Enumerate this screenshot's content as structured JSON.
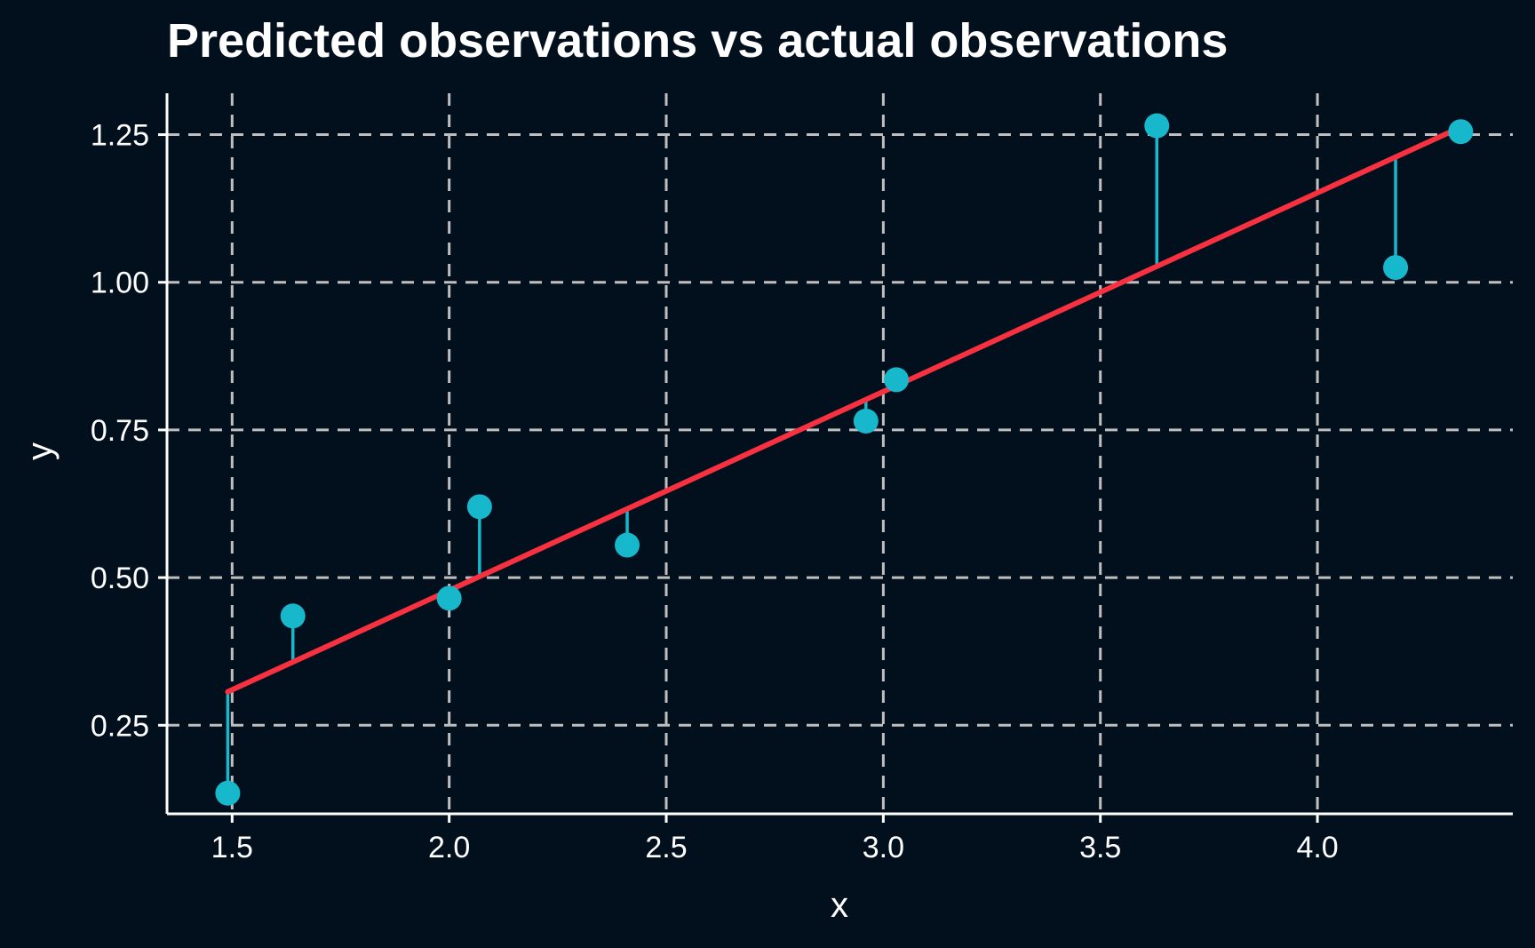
{
  "chart_data": {
    "type": "scatter",
    "title": "Predicted observations vs actual observations",
    "xlabel": "x",
    "ylabel": "y",
    "xlim": [
      1.35,
      4.45
    ],
    "ylim": [
      0.1,
      1.32
    ],
    "x_ticks": [
      1.5,
      2.0,
      2.5,
      3.0,
      3.5,
      4.0
    ],
    "x_tick_labels": [
      "1.5",
      "2.0",
      "2.5",
      "3.0",
      "3.5",
      "4.0"
    ],
    "y_ticks": [
      0.25,
      0.5,
      0.75,
      1.0,
      1.25
    ],
    "y_tick_labels": [
      "0.25",
      "0.50",
      "0.75",
      "1.00",
      "1.25"
    ],
    "grid": true,
    "series": [
      {
        "points": [
          {
            "x": 1.49,
            "y": 0.135
          },
          {
            "x": 1.64,
            "y": 0.435
          },
          {
            "x": 2.0,
            "y": 0.465
          },
          {
            "x": 2.07,
            "y": 0.62
          },
          {
            "x": 2.41,
            "y": 0.555
          },
          {
            "x": 2.96,
            "y": 0.765
          },
          {
            "x": 3.03,
            "y": 0.835
          },
          {
            "x": 3.63,
            "y": 1.265
          },
          {
            "x": 4.18,
            "y": 1.025
          },
          {
            "x": 4.33,
            "y": 1.255
          }
        ]
      }
    ],
    "fit_line": {
      "slope": 0.3366,
      "intercept": -0.1949,
      "x_range": [
        1.49,
        4.33
      ]
    },
    "colors": {
      "background": "#02101e",
      "points": "#17b8cc",
      "residuals": "#17b8cc",
      "fit_line": "#f7313f",
      "grid": "#bfbfbf",
      "axis": "#ffffff",
      "text": "#ffffff"
    }
  }
}
